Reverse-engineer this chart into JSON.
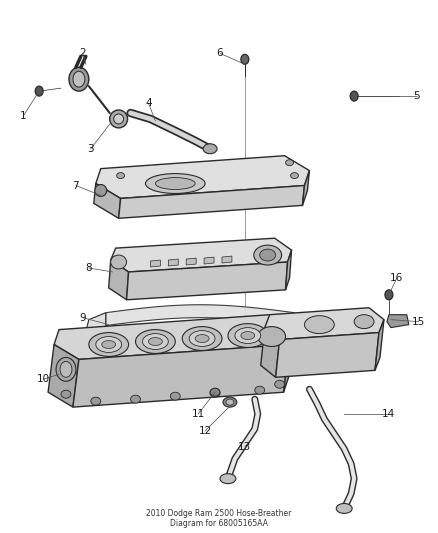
{
  "background_color": "#ffffff",
  "line_color": "#2a2a2a",
  "label_color": "#1a1a1a",
  "figsize": [
    4.38,
    5.33
  ],
  "dpi": 100,
  "part7_fill": "#d8d8d8",
  "part8_fill": "#cccccc",
  "part9_fill": "#e8e8e8",
  "part10_fill": "#c0c0c0",
  "part_stroke": "#2a2a2a"
}
